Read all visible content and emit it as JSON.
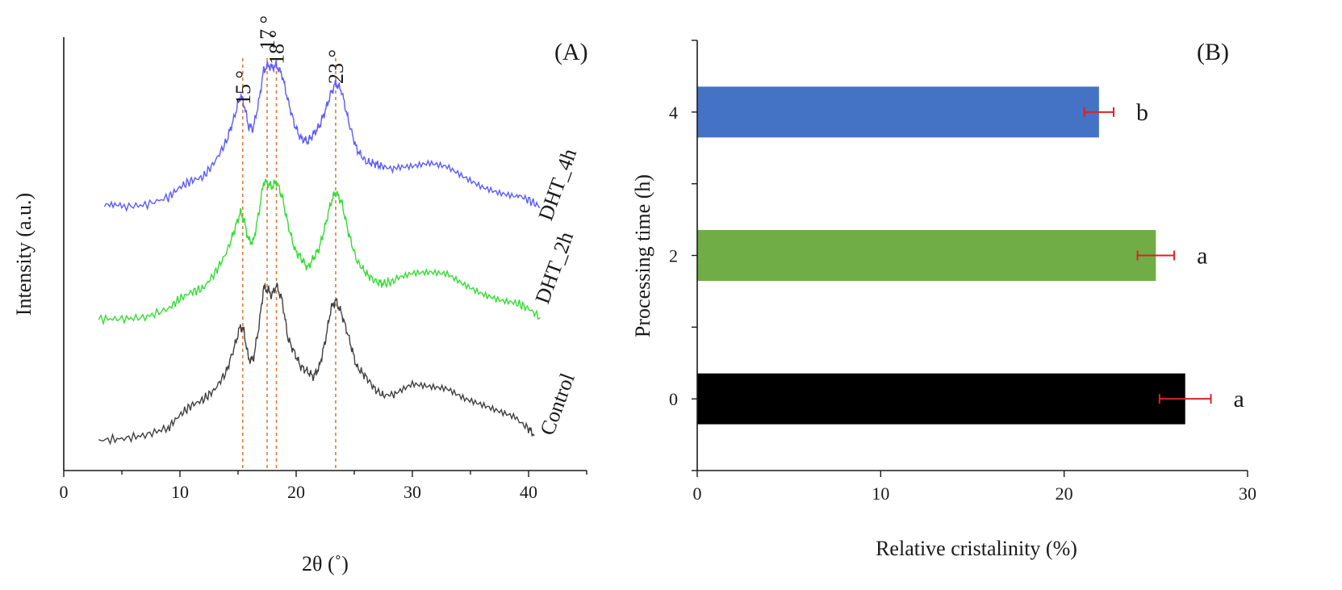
{
  "chart_data": [
    {
      "type": "line",
      "panel_label": "(A)",
      "xlabel": "2θ (˚)",
      "ylabel": "Intensity (a.u.)",
      "xlim": [
        0,
        45
      ],
      "x_ticks": [
        "0",
        "10",
        "20",
        "30",
        "40"
      ],
      "x_tick_values": [
        0,
        10,
        20,
        30,
        40
      ],
      "grid": false,
      "peak_labels": [
        {
          "text": "15 °",
          "x": 15.4
        },
        {
          "text": "17 °",
          "x": 17.5
        },
        {
          "text": "18 °",
          "x": 18.3
        },
        {
          "text": "23 °",
          "x": 23.4
        }
      ],
      "reference_lines_x": [
        15.4,
        17.5,
        18.3,
        23.4
      ],
      "reference_line_color": "#e07b39",
      "series": [
        {
          "name": "DHT_4h",
          "color": "#5b5bff",
          "x": [
            3.5,
            5,
            7,
            9,
            10,
            11,
            12,
            13,
            14,
            14.7,
            15.2,
            15.5,
            15.9,
            16.3,
            16.8,
            17.2,
            17.6,
            17.9,
            18.3,
            18.8,
            19.3,
            19.9,
            20.4,
            21,
            21.5,
            22,
            22.5,
            23,
            23.4,
            23.9,
            24.5,
            25.2,
            26,
            26.8,
            27.5,
            28.5,
            30,
            31.5,
            33,
            34.5,
            36,
            37.5,
            39,
            40,
            41
          ],
          "y": [
            3.2,
            3.1,
            3.5,
            5,
            7,
            8.3,
            9,
            12,
            16,
            21,
            25,
            23.5,
            19,
            18.5,
            24,
            30,
            31,
            30.5,
            31,
            29,
            24,
            19,
            16.6,
            16,
            17.5,
            19,
            22,
            25.5,
            27.5,
            26,
            20,
            14.5,
            12,
            11.6,
            11,
            10.5,
            10.9,
            11.6,
            11,
            9,
            7.2,
            6.1,
            5.5,
            4.5,
            3.1
          ]
        },
        {
          "name": "DHT_2h",
          "color": "#33dd33",
          "x": [
            3,
            5,
            7,
            9,
            10,
            11,
            12,
            13,
            14,
            14.7,
            15.2,
            15.5,
            15.9,
            16.3,
            16.8,
            17.2,
            17.6,
            17.9,
            18.3,
            18.8,
            19.3,
            19.9,
            20.4,
            21,
            21.5,
            22,
            22.5,
            23,
            23.4,
            23.9,
            24.5,
            25.2,
            26,
            26.8,
            27.5,
            28.5,
            30,
            31.5,
            33,
            34.5,
            36,
            37.5,
            39,
            40,
            41
          ],
          "y": [
            3.0,
            3.0,
            3.3,
            5,
            7,
            8.3,
            9,
            12,
            16,
            20.5,
            24,
            22.5,
            18.5,
            18,
            24,
            30,
            29.5,
            29,
            30,
            27,
            21.5,
            16.5,
            15,
            13,
            15,
            17,
            21.3,
            26,
            28,
            26,
            20,
            14.5,
            12,
            10.4,
            9.9,
            10.5,
            11.6,
            11.8,
            11.5,
            9.4,
            7.7,
            6.6,
            6.1,
            5,
            3.3
          ]
        },
        {
          "name": "Control",
          "color": "#404040",
          "x": [
            3,
            5,
            7,
            9,
            10,
            11,
            12,
            13,
            14,
            14.7,
            15.2,
            15.5,
            15.9,
            16.3,
            16.8,
            17.2,
            17.6,
            17.9,
            18.3,
            18.8,
            19.3,
            19.9,
            20.4,
            21,
            21.5,
            22,
            22.5,
            23,
            23.4,
            23.9,
            24.5,
            25.2,
            26,
            26.8,
            27.5,
            28.5,
            30,
            31.5,
            33,
            34.5,
            36,
            37.5,
            39,
            40,
            40.5
          ],
          "y": [
            1.5,
            1.8,
            2.5,
            4,
            6.5,
            8.4,
            9.5,
            11.5,
            15,
            20,
            24,
            23,
            17.5,
            17.3,
            24,
            31.5,
            31,
            30,
            32,
            29,
            21.5,
            18.5,
            16,
            15,
            14,
            16,
            21,
            27.5,
            29,
            26.5,
            22,
            16,
            14,
            11.5,
            10.3,
            10.6,
            12.4,
            11.8,
            11.3,
            9.3,
            8.1,
            6.8,
            5.6,
            3.8,
            2.6
          ]
        }
      ]
    },
    {
      "type": "bar",
      "orientation": "horizontal",
      "panel_label": "(B)",
      "xlabel": "Relative cristalinity (%)",
      "ylabel": "Processing time (h)",
      "xlim": [
        0,
        30
      ],
      "x_ticks": [
        "0",
        "10",
        "20",
        "30"
      ],
      "x_tick_values": [
        0,
        10,
        20,
        30
      ],
      "ylim": [
        -1,
        5
      ],
      "y_tick_values": [
        0,
        1,
        2,
        3,
        4
      ],
      "grid": false,
      "categories": [
        "4",
        "2",
        "0"
      ],
      "category_positions": [
        4,
        2,
        0
      ],
      "values": [
        21.9,
        25.0,
        26.6
      ],
      "errors": [
        0.8,
        1.0,
        1.4
      ],
      "colors": [
        "#4472c4",
        "#70ad47",
        "#000000"
      ],
      "error_color": "#dd2222",
      "significance_letters": [
        "b",
        "a",
        "a"
      ]
    }
  ]
}
